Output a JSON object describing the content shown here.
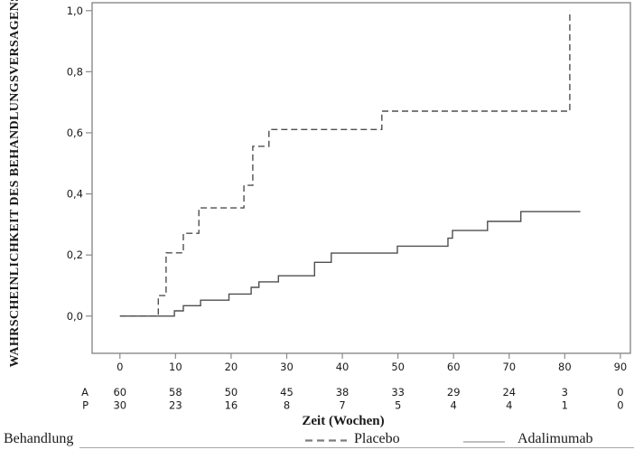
{
  "colors": {
    "curve": "#4f4f4f",
    "curve_light": "#7d7d7d",
    "frame": "#8a8a8a",
    "text": "#1a1a1a",
    "rule": "#a8a8a8"
  },
  "footer": {
    "treatment_label": "Behandlung"
  },
  "chart_data": {
    "type": "line",
    "subtype": "kaplan-meier-step",
    "title": "",
    "xlabel": "Zeit (Wochen)",
    "ylabel": "WAHRSCHEINLICHKEIT DES BEHANDLUNGSVERSAGENS",
    "xlim": [
      -5,
      91.8
    ],
    "ylim": [
      -0.122,
      1.026
    ],
    "grid": false,
    "x_ticks": {
      "values": [
        0,
        10,
        20,
        30,
        40,
        50,
        60,
        70,
        80,
        90
      ],
      "labels": [
        "0",
        "10",
        "20",
        "30",
        "40",
        "50",
        "60",
        "70",
        "80",
        "90"
      ]
    },
    "y_ticks": {
      "values": [
        0.0,
        0.2,
        0.4,
        0.6,
        0.8,
        1.0
      ],
      "labels": [
        "0,0",
        "0,2",
        "0,4",
        "0,6",
        "0,8",
        "1,0"
      ]
    },
    "legend": {
      "position": "bottom",
      "items": [
        {
          "label": "Placebo",
          "line": "dashed"
        },
        {
          "label": "Adalimumab",
          "line": "solid"
        }
      ]
    },
    "series": [
      {
        "name": "Placebo",
        "line": "dashed",
        "steps": [
          [
            0,
            0.0
          ],
          [
            6.9,
            0.067
          ],
          [
            8.3,
            0.207
          ],
          [
            11.4,
            0.271
          ],
          [
            14.2,
            0.354
          ],
          [
            22.3,
            0.428
          ],
          [
            23.9,
            0.556
          ],
          [
            26.8,
            0.611
          ],
          [
            47.1,
            0.671
          ],
          [
            80.9,
            1.0
          ]
        ],
        "end_x": 80.9
      },
      {
        "name": "Adalimumab",
        "line": "solid",
        "steps": [
          [
            0,
            0.0
          ],
          [
            9.8,
            0.017
          ],
          [
            11.4,
            0.034
          ],
          [
            14.5,
            0.052
          ],
          [
            19.6,
            0.072
          ],
          [
            23.6,
            0.094
          ],
          [
            25.0,
            0.112
          ],
          [
            28.5,
            0.132
          ],
          [
            35.0,
            0.176
          ],
          [
            38.0,
            0.206
          ],
          [
            49.9,
            0.229
          ],
          [
            59.0,
            0.255
          ],
          [
            59.8,
            0.28
          ],
          [
            66.1,
            0.31
          ],
          [
            72.1,
            0.342
          ]
        ],
        "end_x": 82.8
      }
    ],
    "at_risk_table": {
      "x_values": [
        0,
        10,
        20,
        30,
        40,
        50,
        60,
        70,
        80,
        90
      ],
      "rows": [
        {
          "label": "A",
          "series": "Adalimumab",
          "counts": [
            60,
            58,
            50,
            45,
            38,
            33,
            29,
            24,
            3,
            0
          ]
        },
        {
          "label": "P",
          "series": "Placebo",
          "counts": [
            30,
            23,
            16,
            8,
            7,
            5,
            4,
            4,
            1,
            0
          ]
        }
      ]
    }
  }
}
